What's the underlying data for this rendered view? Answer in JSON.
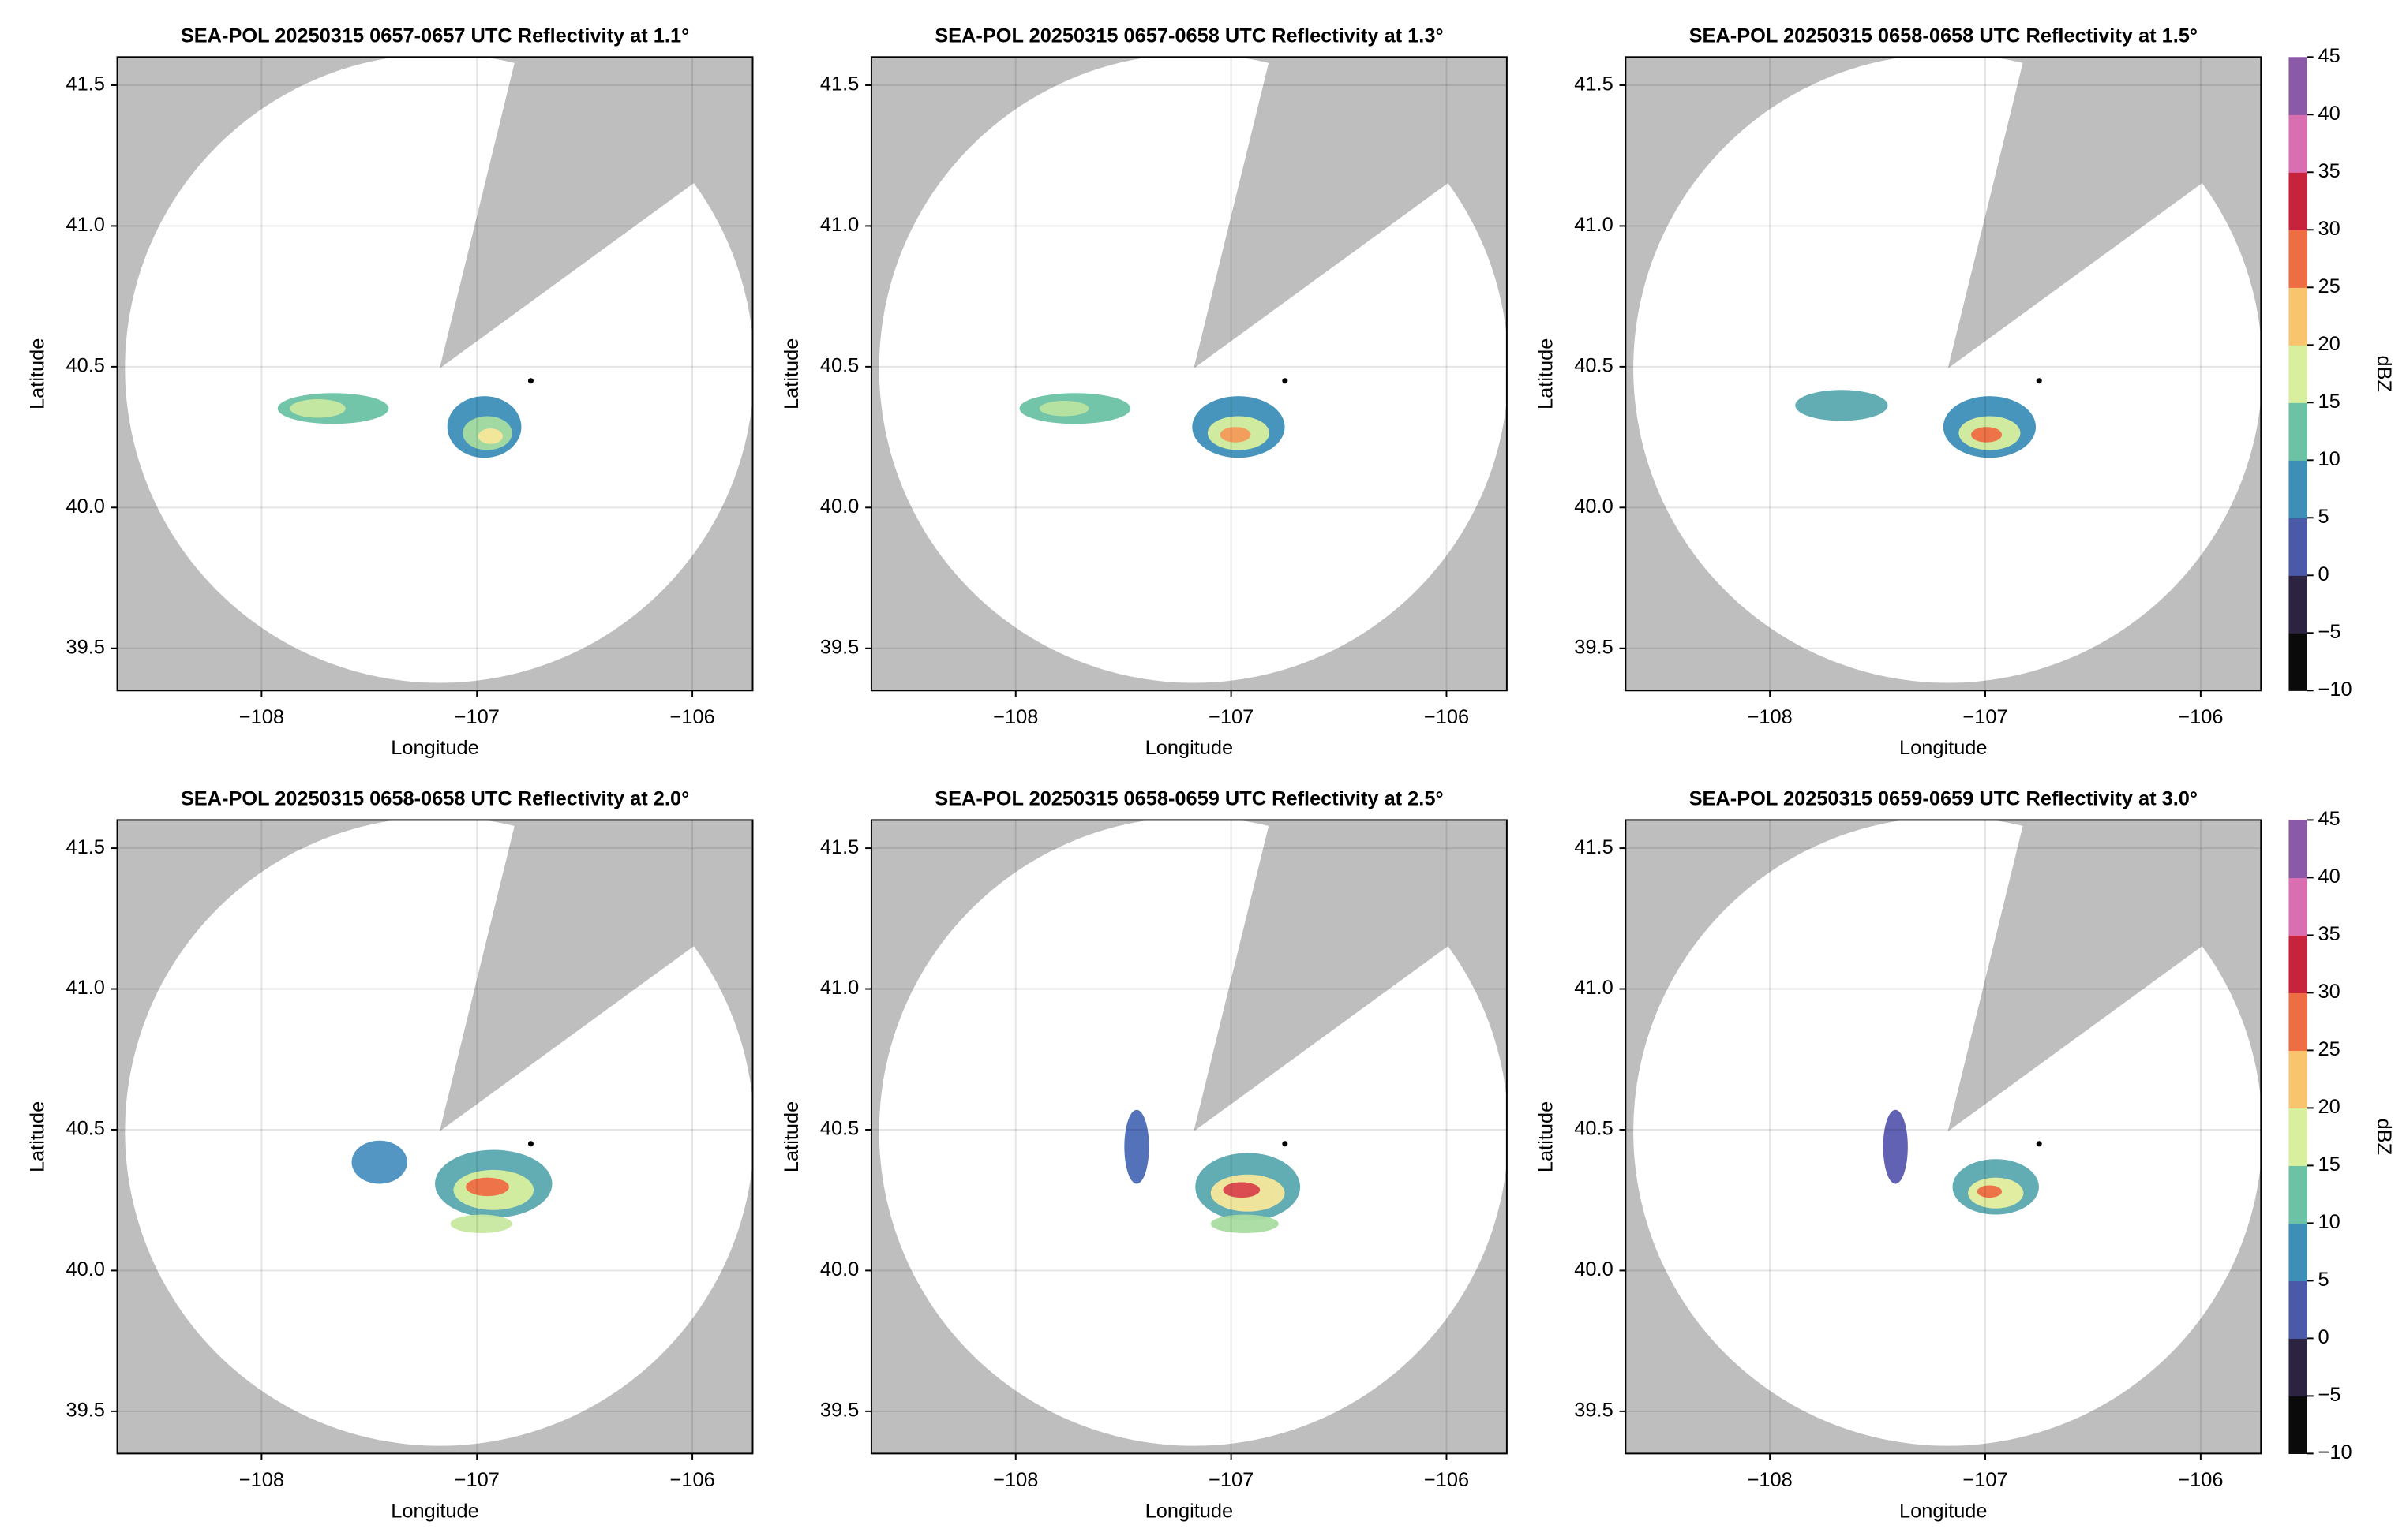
{
  "chart_data": [
    {
      "type": "map",
      "title": "SEA-POL 20250315 0657-0657 UTC Reflectivity at 1.1°",
      "xlabel": "Longitude",
      "ylabel": "Latitude",
      "xlim": [
        -108.67,
        -105.72
      ],
      "ylim": [
        39.35,
        41.6
      ],
      "xticks": [
        {
          "value": -108,
          "label": "−108"
        },
        {
          "value": -107,
          "label": "−107"
        },
        {
          "value": -106,
          "label": "−106"
        }
      ],
      "yticks": [
        39.5,
        {
          "value": 40,
          "label": "40.0"
        },
        40.5,
        {
          "value": 41,
          "label": "41.0"
        },
        41.5
      ],
      "grid": true,
      "marker": {
        "x": -106.75,
        "y": 40.45
      }
    },
    {
      "type": "map",
      "title": "SEA-POL 20250315 0657-0658 UTC Reflectivity at 1.3°",
      "xlabel": "Longitude",
      "ylabel": "Latitude",
      "xlim": [
        -108.67,
        -105.72
      ],
      "ylim": [
        39.35,
        41.6
      ],
      "xticks": [
        {
          "value": -108,
          "label": "−108"
        },
        {
          "value": -107,
          "label": "−107"
        },
        {
          "value": -106,
          "label": "−106"
        }
      ],
      "yticks": [
        39.5,
        {
          "value": 40,
          "label": "40.0"
        },
        40.5,
        {
          "value": 41,
          "label": "41.0"
        },
        41.5
      ],
      "grid": true,
      "marker": {
        "x": -106.75,
        "y": 40.45
      }
    },
    {
      "type": "map",
      "title": "SEA-POL 20250315 0658-0658 UTC Reflectivity at 1.5°",
      "xlabel": "Longitude",
      "ylabel": "Latitude",
      "xlim": [
        -108.67,
        -105.72
      ],
      "ylim": [
        39.35,
        41.6
      ],
      "xticks": [
        {
          "value": -108,
          "label": "−108"
        },
        {
          "value": -107,
          "label": "−107"
        },
        {
          "value": -106,
          "label": "−106"
        }
      ],
      "yticks": [
        39.5,
        {
          "value": 40,
          "label": "40.0"
        },
        40.5,
        {
          "value": 41,
          "label": "41.0"
        },
        41.5
      ],
      "grid": true,
      "marker": {
        "x": -106.75,
        "y": 40.45
      },
      "colorbar": {
        "label": "dBZ",
        "lim": [
          -10,
          45
        ],
        "ticks": [
          {
            "value": -10,
            "label": "−10"
          },
          {
            "value": -5,
            "label": "−5"
          },
          0,
          5,
          10,
          15,
          20,
          25,
          30,
          35,
          40,
          45
        ],
        "colors": [
          "#0a0a0a",
          "#2b2340",
          "#4a5aa8",
          "#3d8fb8",
          "#6cc2a4",
          "#d8ef9e",
          "#f9c46e",
          "#ef6d43",
          "#c8233c",
          "#d96fb0",
          "#8a5aa8"
        ]
      }
    },
    {
      "type": "map",
      "title": "SEA-POL 20250315 0658-0658 UTC Reflectivity at 2.0°",
      "xlabel": "Longitude",
      "ylabel": "Latitude",
      "xlim": [
        -108.67,
        -105.72
      ],
      "ylim": [
        39.35,
        41.6
      ],
      "xticks": [
        {
          "value": -108,
          "label": "−108"
        },
        {
          "value": -107,
          "label": "−107"
        },
        {
          "value": -106,
          "label": "−106"
        }
      ],
      "yticks": [
        39.5,
        {
          "value": 40,
          "label": "40.0"
        },
        40.5,
        {
          "value": 41,
          "label": "41.0"
        },
        41.5
      ],
      "grid": true,
      "marker": {
        "x": -106.75,
        "y": 40.45
      }
    },
    {
      "type": "map",
      "title": "SEA-POL 20250315 0658-0659 UTC Reflectivity at 2.5°",
      "xlabel": "Longitude",
      "ylabel": "Latitude",
      "xlim": [
        -108.67,
        -105.72
      ],
      "ylim": [
        39.35,
        41.6
      ],
      "xticks": [
        {
          "value": -108,
          "label": "−108"
        },
        {
          "value": -107,
          "label": "−107"
        },
        {
          "value": -106,
          "label": "−106"
        }
      ],
      "yticks": [
        39.5,
        {
          "value": 40,
          "label": "40.0"
        },
        40.5,
        {
          "value": 41,
          "label": "41.0"
        },
        41.5
      ],
      "grid": true,
      "marker": {
        "x": -106.75,
        "y": 40.45
      }
    },
    {
      "type": "map",
      "title": "SEA-POL 20250315 0659-0659 UTC Reflectivity at 3.0°",
      "xlabel": "Longitude",
      "ylabel": "Latitude",
      "xlim": [
        -108.67,
        -105.72
      ],
      "ylim": [
        39.35,
        41.6
      ],
      "xticks": [
        {
          "value": -108,
          "label": "−108"
        },
        {
          "value": -107,
          "label": "−107"
        },
        {
          "value": -106,
          "label": "−106"
        }
      ],
      "yticks": [
        39.5,
        {
          "value": 40,
          "label": "40.0"
        },
        40.5,
        {
          "value": 41,
          "label": "41.0"
        },
        41.5
      ],
      "grid": true,
      "marker": {
        "x": -106.75,
        "y": 40.45
      },
      "colorbar": {
        "label": "dBZ",
        "lim": [
          -10,
          45
        ],
        "ticks": [
          {
            "value": -10,
            "label": "−10"
          },
          {
            "value": -5,
            "label": "−5"
          },
          0,
          5,
          10,
          15,
          20,
          25,
          30,
          35,
          40,
          45
        ],
        "colors": [
          "#0a0a0a",
          "#2b2340",
          "#4a5aa8",
          "#3d8fb8",
          "#6cc2a4",
          "#d8ef9e",
          "#f9c46e",
          "#ef6d43",
          "#c8233c",
          "#d96fb0",
          "#8a5aa8"
        ]
      }
    }
  ]
}
